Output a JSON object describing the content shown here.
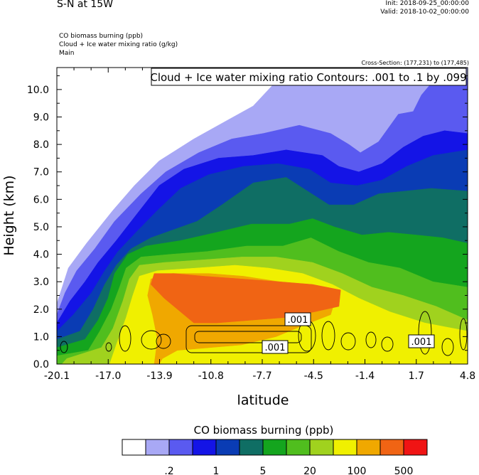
{
  "header": {
    "title": "S-N at 15W",
    "init": "Init: 2018-09-25_00:00:00",
    "valid": "Valid: 2018-10-02_00:00:00",
    "fields": [
      "CO biomass burning   (ppb)",
      "Cloud + Ice water mixing ratio   (g/kg)",
      "Main"
    ],
    "cross_section": "Cross-Section: (177,231) to (177,485)"
  },
  "colors": {
    "levels": [
      "#ffffff",
      "#a8a8f5",
      "#5a5af0",
      "#1414e6",
      "#0a3cb4",
      "#0f6e64",
      "#14a51e",
      "#50be1e",
      "#a0d21e",
      "#f0f000",
      "#f0a800",
      "#f06414",
      "#f01414"
    ]
  },
  "chart_data": {
    "type": "contour",
    "xlabel": "latitude",
    "ylabel": "Height (km)",
    "xlim": [
      -20.1,
      4.8
    ],
    "ylim": [
      0.0,
      10.8
    ],
    "x_ticks": [
      "-20.1",
      "-17.0",
      "-13.9",
      "-10.8",
      "-7.7",
      "-4.5",
      "-1.4",
      "1.7",
      "4.8"
    ],
    "y_ticks": [
      "0.0",
      "1.0",
      "2.0",
      "3.0",
      "4.0",
      "5.0",
      "6.0",
      "7.0",
      "8.0",
      "9.0",
      "10.0"
    ],
    "contour_title": "Cloud + Ice water mixing ratio Contours: .001 to .1 by .099",
    "contour_labels": [
      ".001",
      ".001",
      ".001"
    ],
    "colorbar_title": "CO biomass burning  (ppb)",
    "colorbar_labels": [
      ".2",
      "1",
      "5",
      "20",
      "100",
      "500"
    ],
    "filled_regions": [
      {
        "level": 1,
        "points": [
          [
            -20.1,
            0
          ],
          [
            -20.1,
            2.2
          ],
          [
            -19.4,
            3.5
          ],
          [
            -18.3,
            4.4
          ],
          [
            -16.7,
            5.6
          ],
          [
            -15.4,
            6.5
          ],
          [
            -13.9,
            7.4
          ],
          [
            -11.8,
            8.2
          ],
          [
            -10.0,
            8.8
          ],
          [
            -8.2,
            9.4
          ],
          [
            -6.8,
            10.3
          ],
          [
            -5.9,
            10.8
          ],
          [
            4.8,
            10.8
          ],
          [
            4.8,
            0
          ]
        ]
      },
      {
        "level": 2,
        "points": [
          [
            -20.1,
            0
          ],
          [
            -20.1,
            1.8
          ],
          [
            -19.6,
            2.6
          ],
          [
            -18.9,
            3.4
          ],
          [
            -17.8,
            4.2
          ],
          [
            -16.6,
            5.2
          ],
          [
            -15.0,
            6.2
          ],
          [
            -13.5,
            7.0
          ],
          [
            -11.5,
            7.7
          ],
          [
            -9.5,
            8.2
          ],
          [
            -7.6,
            8.4
          ],
          [
            -5.4,
            8.7
          ],
          [
            -3.5,
            8.4
          ],
          [
            -2.4,
            8.0
          ],
          [
            -1.7,
            7.7
          ],
          [
            -0.6,
            8.1
          ],
          [
            0.6,
            9.1
          ],
          [
            1.5,
            9.2
          ],
          [
            2.0,
            9.8
          ],
          [
            2.7,
            10.3
          ],
          [
            3.6,
            10.5
          ],
          [
            4.8,
            10.4
          ],
          [
            4.8,
            0
          ]
        ]
      },
      {
        "level": 3,
        "points": [
          [
            -20.1,
            0
          ],
          [
            -20.1,
            1.5
          ],
          [
            -19.3,
            2.3
          ],
          [
            -18.4,
            3.0
          ],
          [
            -17.6,
            3.7
          ],
          [
            -16.5,
            4.5
          ],
          [
            -15.2,
            5.5
          ],
          [
            -13.9,
            6.5
          ],
          [
            -12.4,
            7.1
          ],
          [
            -10.3,
            7.5
          ],
          [
            -8.2,
            7.6
          ],
          [
            -6.2,
            7.8
          ],
          [
            -4.0,
            7.6
          ],
          [
            -3.0,
            7.2
          ],
          [
            -1.8,
            7.0
          ],
          [
            -0.4,
            7.3
          ],
          [
            0.9,
            7.9
          ],
          [
            2.1,
            8.3
          ],
          [
            3.4,
            8.5
          ],
          [
            4.8,
            8.4
          ],
          [
            4.8,
            0
          ]
        ]
      },
      {
        "level": 4,
        "points": [
          [
            -20.1,
            0
          ],
          [
            -20.1,
            1.2
          ],
          [
            -19.1,
            1.8
          ],
          [
            -18.0,
            2.6
          ],
          [
            -17.2,
            3.4
          ],
          [
            -16.4,
            4.1
          ],
          [
            -15.3,
            4.8
          ],
          [
            -14.0,
            5.6
          ],
          [
            -12.6,
            6.4
          ],
          [
            -10.9,
            6.9
          ],
          [
            -8.8,
            7.2
          ],
          [
            -6.7,
            7.3
          ],
          [
            -4.8,
            7.1
          ],
          [
            -3.5,
            6.6
          ],
          [
            -1.9,
            6.5
          ],
          [
            -0.4,
            6.7
          ],
          [
            1.1,
            7.2
          ],
          [
            2.7,
            7.6
          ],
          [
            4.8,
            7.8
          ],
          [
            4.8,
            0
          ]
        ]
      },
      {
        "level": 5,
        "points": [
          [
            -20.1,
            0
          ],
          [
            -20.1,
            0.9
          ],
          [
            -18.7,
            1.2
          ],
          [
            -17.9,
            2.0
          ],
          [
            -17.2,
            2.9
          ],
          [
            -16.5,
            3.6
          ],
          [
            -15.6,
            4.2
          ],
          [
            -14.4,
            4.6
          ],
          [
            -13.0,
            4.9
          ],
          [
            -11.6,
            5.2
          ],
          [
            -10.1,
            5.8
          ],
          [
            -8.2,
            6.6
          ],
          [
            -6.2,
            6.8
          ],
          [
            -4.9,
            6.3
          ],
          [
            -3.6,
            5.8
          ],
          [
            -2.1,
            5.8
          ],
          [
            -0.6,
            6.2
          ],
          [
            1.0,
            6.3
          ],
          [
            2.6,
            6.4
          ],
          [
            4.8,
            6.3
          ],
          [
            4.8,
            0
          ]
        ]
      },
      {
        "level": 6,
        "points": [
          [
            -20.1,
            0
          ],
          [
            -20.1,
            0.6
          ],
          [
            -18.4,
            0.9
          ],
          [
            -17.6,
            1.6
          ],
          [
            -17.0,
            2.4
          ],
          [
            -16.6,
            3.3
          ],
          [
            -15.8,
            4.0
          ],
          [
            -14.7,
            4.3
          ],
          [
            -12.6,
            4.5
          ],
          [
            -10.4,
            4.8
          ],
          [
            -8.3,
            5.1
          ],
          [
            -6.0,
            5.1
          ],
          [
            -4.6,
            5.3
          ],
          [
            -3.3,
            5.0
          ],
          [
            -1.6,
            4.7
          ],
          [
            0.0,
            4.8
          ],
          [
            1.7,
            4.7
          ],
          [
            3.3,
            4.6
          ],
          [
            4.8,
            4.4
          ],
          [
            4.8,
            0
          ]
        ]
      },
      {
        "level": 7,
        "points": [
          [
            -20.1,
            0
          ],
          [
            -20.1,
            0.3
          ],
          [
            -18.2,
            0.5
          ],
          [
            -17.5,
            1.2
          ],
          [
            -16.8,
            2.0
          ],
          [
            -16.3,
            2.8
          ],
          [
            -15.9,
            3.5
          ],
          [
            -15.0,
            3.9
          ],
          [
            -13.2,
            4.0
          ],
          [
            -11.0,
            4.1
          ],
          [
            -8.6,
            4.3
          ],
          [
            -6.4,
            4.3
          ],
          [
            -4.7,
            4.6
          ],
          [
            -3.0,
            4.1
          ],
          [
            -1.2,
            3.7
          ],
          [
            0.7,
            3.5
          ],
          [
            2.7,
            3.0
          ],
          [
            4.8,
            2.8
          ],
          [
            4.8,
            0
          ]
        ]
      },
      {
        "level": 8,
        "points": [
          [
            -19.8,
            0
          ],
          [
            -19.5,
            0.2
          ],
          [
            -17.4,
            0.6
          ],
          [
            -16.7,
            1.3
          ],
          [
            -16.1,
            2.3
          ],
          [
            -15.7,
            3.1
          ],
          [
            -15.1,
            3.6
          ],
          [
            -13.6,
            3.7
          ],
          [
            -11.2,
            3.8
          ],
          [
            -8.9,
            3.9
          ],
          [
            -6.8,
            3.9
          ],
          [
            -4.6,
            3.7
          ],
          [
            -2.8,
            3.3
          ],
          [
            -1.0,
            2.8
          ],
          [
            0.9,
            2.5
          ],
          [
            2.9,
            2.1
          ],
          [
            4.8,
            1.6
          ],
          [
            4.8,
            0
          ]
        ]
      },
      {
        "level": 9,
        "points": [
          [
            -16.9,
            0
          ],
          [
            -16.5,
            0.7
          ],
          [
            -15.9,
            1.7
          ],
          [
            -15.5,
            2.5
          ],
          [
            -15.1,
            3.2
          ],
          [
            -14.0,
            3.4
          ],
          [
            -11.6,
            3.5
          ],
          [
            -9.3,
            3.6
          ],
          [
            -7.3,
            3.5
          ],
          [
            -5.2,
            3.3
          ],
          [
            -3.4,
            2.9
          ],
          [
            -1.8,
            2.4
          ],
          [
            0.1,
            1.9
          ],
          [
            2.2,
            1.5
          ],
          [
            4.8,
            1.2
          ],
          [
            4.8,
            0
          ]
        ]
      },
      {
        "level": 10,
        "points": [
          [
            -14.2,
            0
          ],
          [
            -14.0,
            0.9
          ],
          [
            -14.3,
            1.8
          ],
          [
            -14.6,
            2.5
          ],
          [
            -14.4,
            3.1
          ],
          [
            -13.1,
            3.3
          ],
          [
            -10.9,
            3.3
          ],
          [
            -8.8,
            3.2
          ],
          [
            -6.6,
            3.0
          ],
          [
            -4.7,
            2.8
          ],
          [
            -3.2,
            2.4
          ],
          [
            -3.5,
            1.8
          ],
          [
            -5.2,
            1.4
          ],
          [
            -6.8,
            1.0
          ],
          [
            -8.9,
            0.7
          ],
          [
            -10.8,
            0.6
          ],
          [
            -12.8,
            0.5
          ],
          [
            -13.7,
            0.2
          ],
          [
            -13.9,
            0
          ]
        ]
      },
      {
        "level": 11,
        "points": [
          [
            -14.2,
            3.3
          ],
          [
            -14.4,
            2.9
          ],
          [
            -13.6,
            2.4
          ],
          [
            -12.6,
            1.9
          ],
          [
            -11.8,
            1.5
          ],
          [
            -10.4,
            1.5
          ],
          [
            -8.3,
            1.6
          ],
          [
            -6.2,
            1.7
          ],
          [
            -4.5,
            1.9
          ],
          [
            -3.0,
            2.1
          ],
          [
            -2.9,
            2.7
          ],
          [
            -4.6,
            2.9
          ],
          [
            -6.6,
            3.0
          ],
          [
            -8.9,
            3.1
          ],
          [
            -11.2,
            3.2
          ],
          [
            -13.0,
            3.3
          ]
        ]
      }
    ]
  }
}
